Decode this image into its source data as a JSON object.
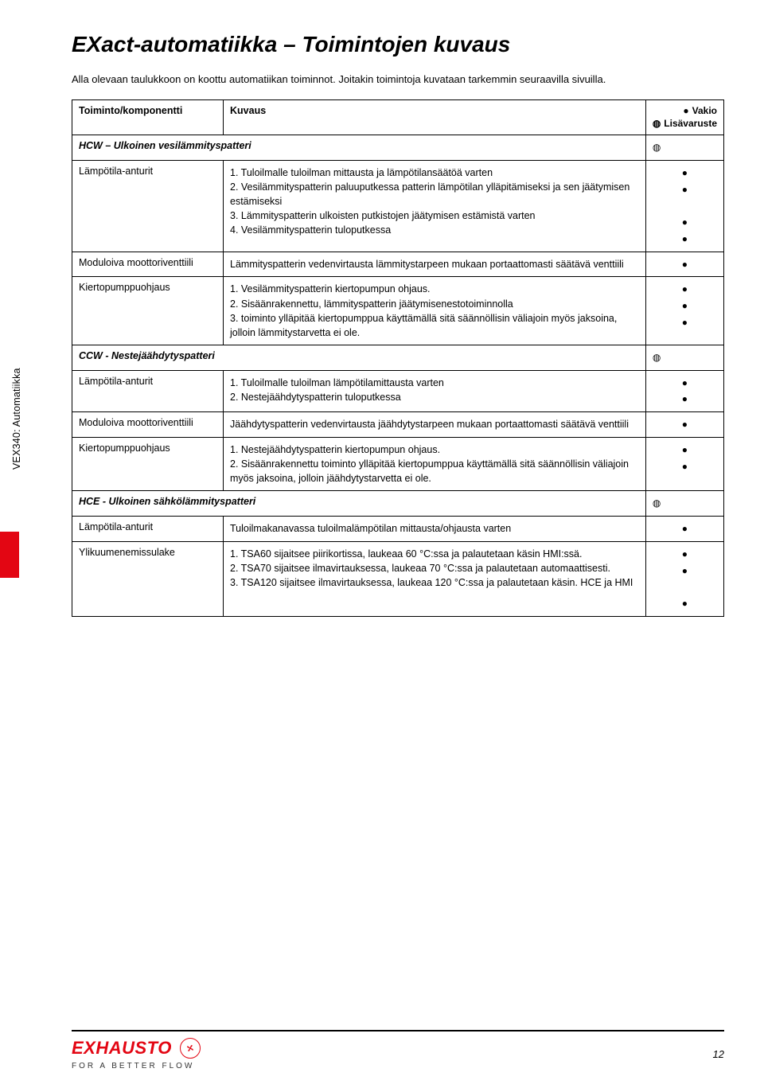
{
  "brand_color": "#e30613",
  "title": "EXact-automatiikka – Toimintojen kuvaus",
  "intro": "Alla olevaan taulukkoon on koottu automatiikan toiminnot. Joitakin toimintoja kuvataan tarkemmin seuraavilla sivuilla.",
  "side_label": "VEX340: Automatiikka",
  "header": {
    "col1": "Toiminto/komponentti",
    "col2": "Kuvaus",
    "legend_std": "Vakio",
    "legend_opt": "Lisävaruste"
  },
  "sections": [
    {
      "heading": "HCW – Ulkoinen vesilämmityspatteri",
      "heading_symbol": "open",
      "rows": [
        {
          "comp": "Lämpötila-anturit",
          "desc": [
            "1. Tuloilmalle tuloilman mittausta ja lämpötilansäätöä varten",
            "2. Vesilämmityspatterin paluuputkessa patterin lämpötilan ylläpitämiseksi ja sen jäätymisen estämiseksi",
            "3. Lämmityspatterin ulkoisten putkistojen jäätymisen estämistä varten",
            "4. Vesilämmityspatterin tuloputkessa"
          ],
          "symbols": [
            "fill",
            "fill",
            "",
            "fill",
            "fill"
          ],
          "sym_pad_top": "0"
        },
        {
          "comp": "Moduloiva moottoriventtiili",
          "desc": [
            "Lämmityspatterin vedenvirtausta lämmitystarpeen mukaan portaattomasti säätävä venttiili"
          ],
          "symbols": [
            "fill"
          ]
        },
        {
          "comp": "Kiertopumppuohjaus",
          "desc": [
            "1. Vesilämmityspatterin kiertopumpun ohjaus.",
            "2. Sisäänrakennettu, lämmityspatterin jäätymisenestotoiminnolla",
            "3. toiminto ylläpitää kiertopumppua käyttämällä sitä säännöllisin väliajoin myös jaksoina, jolloin lämmitystarvetta ei ole."
          ],
          "symbols": [
            "fill",
            "fill",
            "fill"
          ]
        }
      ]
    },
    {
      "heading": "CCW - Nestejäähdytyspatteri",
      "heading_symbol": "open",
      "rows": [
        {
          "comp": "Lämpötila-anturit",
          "desc": [
            "1. Tuloilmalle tuloilman lämpötilamittausta varten",
            "2. Nestejäähdytyspatterin tuloputkessa"
          ],
          "symbols": [
            "fill",
            "fill"
          ]
        },
        {
          "comp": "Moduloiva moottoriventtiili",
          "desc": [
            "Jäähdytyspatterin vedenvirtausta jäähdytystarpeen mukaan portaattomasti säätävä venttiili"
          ],
          "symbols": [
            "fill"
          ]
        },
        {
          "comp": "Kiertopumppuohjaus",
          "desc": [
            "1. Nestejäähdytyspatterin kiertopumpun ohjaus.",
            "2. Sisäänrakennettu toiminto ylläpitää kiertopumppua käyttämällä sitä säännöllisin väliajoin myös jaksoina, jolloin jäähdytystarvetta ei ole."
          ],
          "symbols": [
            "fill",
            "fill"
          ]
        }
      ]
    },
    {
      "heading": "HCE - Ulkoinen sähkölämmityspatteri",
      "heading_symbol": "open",
      "rows": [
        {
          "comp": "Lämpötila-anturit",
          "desc": [
            "Tuloilmakanavassa tuloilmalämpötilan mittausta/ohjausta varten"
          ],
          "symbols": [
            "fill"
          ]
        },
        {
          "comp": "Ylikuumenemissulake",
          "desc": [
            "1. TSA60 sijaitsee piirikortissa, laukeaa 60 °C:ssa ja palautetaan käsin HMI:ssä.",
            "2. TSA70 sijaitsee ilmavirtauksessa, laukeaa 70 °C:ssa ja palautetaan automaattisesti.",
            "3. TSA120 sijaitsee ilmavirtauksessa, laukeaa 120 °C:ssa ja palautetaan käsin. HCE ja HMI"
          ],
          "symbols": [
            "fill",
            "fill",
            "",
            "fill"
          ]
        }
      ]
    }
  ],
  "footer": {
    "logo": "EXHAUSTO",
    "motto": "FOR A BETTER FLOW",
    "page": "12"
  }
}
